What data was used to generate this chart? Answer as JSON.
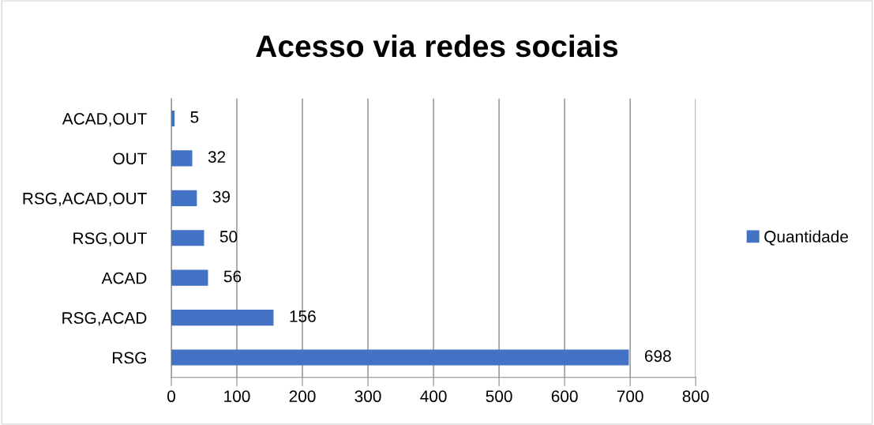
{
  "chart_data": {
    "type": "bar",
    "orientation": "horizontal",
    "title": "Acesso via redes sociais",
    "categories": [
      "ACAD,OUT",
      "OUT",
      "RSG,ACAD,OUT",
      "RSG,OUT",
      "ACAD",
      "RSG,ACAD",
      "RSG"
    ],
    "series": [
      {
        "name": "Quantidade",
        "color": "#4472c4",
        "values": [
          5,
          32,
          39,
          50,
          56,
          156,
          698
        ]
      }
    ],
    "xlim": [
      0,
      800
    ],
    "xticks": [
      0,
      100,
      200,
      300,
      400,
      500,
      600,
      700,
      800
    ],
    "grid": "x",
    "legend": "right",
    "data_labels": true
  }
}
